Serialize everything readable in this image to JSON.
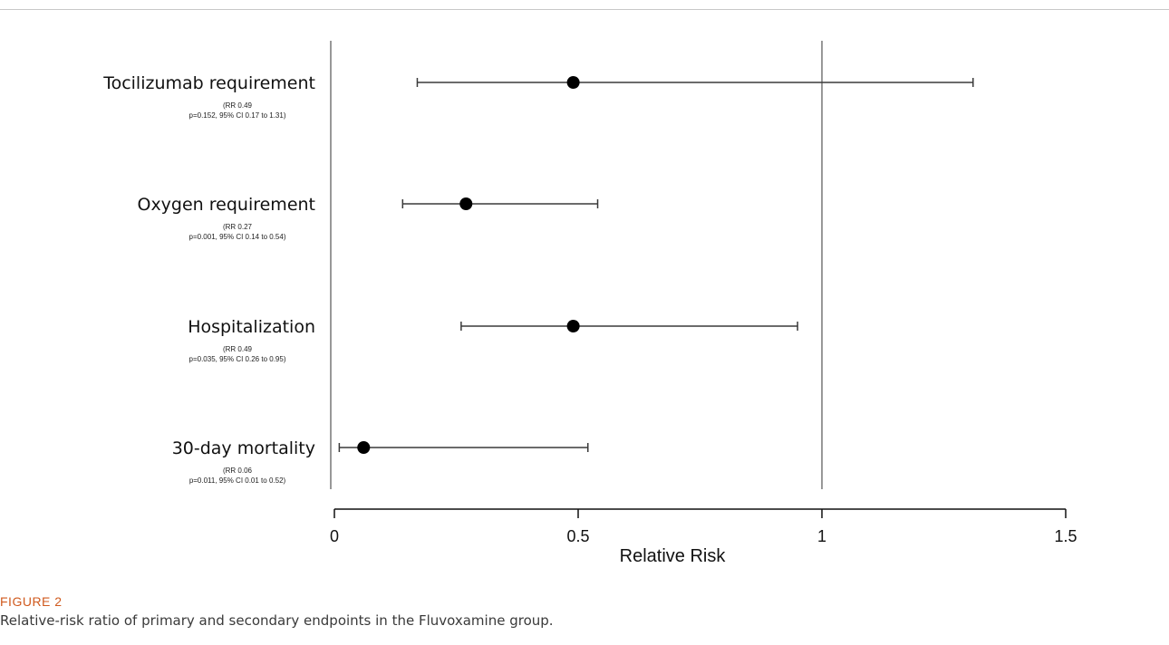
{
  "figure": {
    "label": "FIGURE 2",
    "caption": "Relative-risk ratio of primary and secondary endpoints in the Fluvoxamine group."
  },
  "chart_data": {
    "type": "forest",
    "xlabel": "Relative Risk",
    "xlim": [
      0,
      1.5
    ],
    "xticks": [
      0,
      0.5,
      1,
      1.5
    ],
    "xtick_labels": [
      "0",
      "0.5",
      "1",
      "1.5"
    ],
    "reference_line": 1,
    "grid": false,
    "marker_color": "#000000",
    "line_color": "#3a3a3a",
    "rows": [
      {
        "name": "Tocilizumab requirement",
        "stat_line1": "(RR 0.49",
        "stat_line2": "p=0.152, 95% CI 0.17 to 1.31)",
        "rr": 0.49,
        "ci_low": 0.17,
        "ci_high": 1.31,
        "p": 0.152
      },
      {
        "name": "Oxygen requirement",
        "stat_line1": "(RR 0.27",
        "stat_line2": "p=0.001, 95% CI 0.14 to 0.54)",
        "rr": 0.27,
        "ci_low": 0.14,
        "ci_high": 0.54,
        "p": 0.001
      },
      {
        "name": "Hospitalization",
        "stat_line1": "(RR 0.49",
        "stat_line2": "p=0.035, 95% CI 0.26 to 0.95)",
        "rr": 0.49,
        "ci_low": 0.26,
        "ci_high": 0.95,
        "p": 0.035
      },
      {
        "name": "30-day mortality",
        "stat_line1": "(RR 0.06",
        "stat_line2": "p=0.011, 95% CI 0.01 to 0.52)",
        "rr": 0.06,
        "ci_low": 0.01,
        "ci_high": 0.52,
        "p": 0.011
      }
    ]
  }
}
